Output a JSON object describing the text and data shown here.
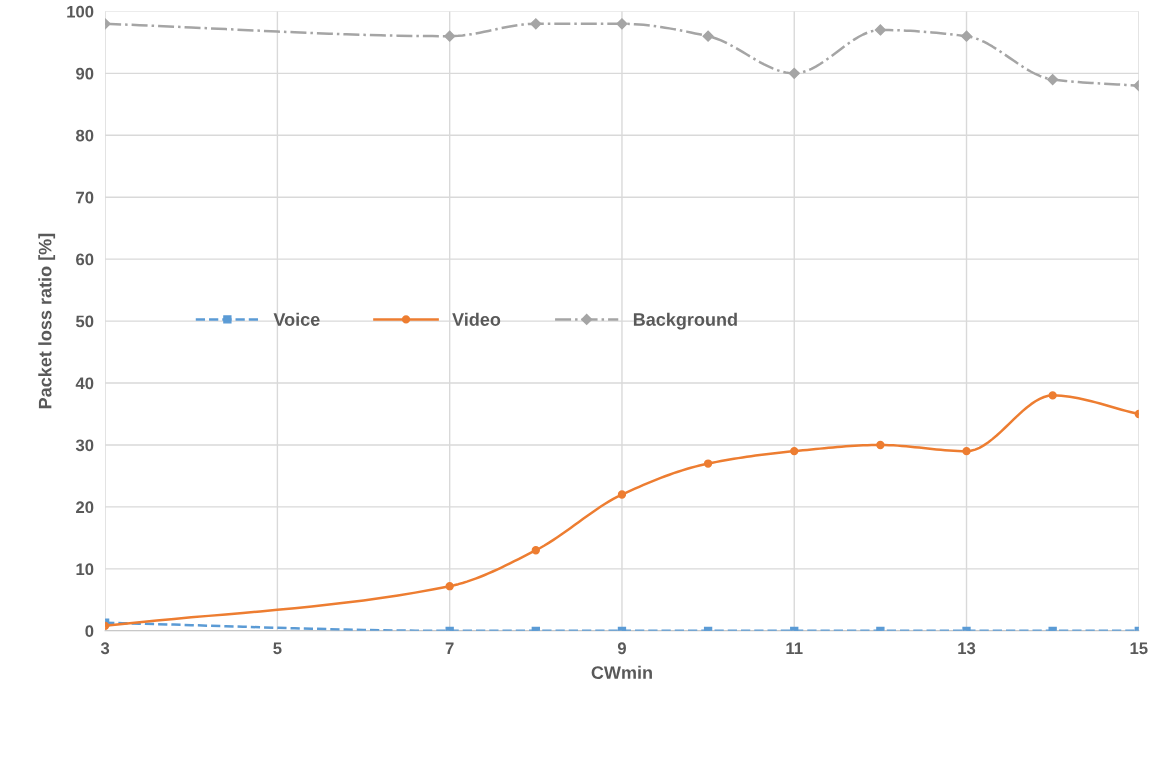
{
  "chart_data": {
    "type": "line",
    "xlabel": "CWmin",
    "ylabel": "Packet loss ratio [%]",
    "x": [
      3,
      7,
      8,
      9,
      10,
      11,
      12,
      13,
      14,
      15
    ],
    "series": [
      {
        "name": "Voice",
        "color": "#5b9bd5",
        "marker": "square",
        "line_style": "dashed",
        "values": [
          1.3,
          0,
          0,
          0,
          0,
          0,
          0,
          0,
          0,
          0
        ]
      },
      {
        "name": "Video",
        "color": "#ed7d31",
        "marker": "circle",
        "line_style": "solid",
        "values": [
          0.8,
          7.2,
          13,
          22,
          27,
          29,
          30,
          29,
          38,
          35
        ]
      },
      {
        "name": "Background",
        "color": "#a5a5a5",
        "marker": "diamond",
        "line_style": "dashdot",
        "values": [
          98,
          96,
          98,
          98,
          96,
          90,
          97,
          96,
          89,
          88
        ]
      }
    ],
    "xlim": [
      3,
      15
    ],
    "xticks": [
      3,
      5,
      7,
      9,
      11,
      13,
      15
    ],
    "ylim": [
      0,
      100
    ],
    "yticks": [
      0,
      10,
      20,
      30,
      40,
      50,
      60,
      70,
      80,
      90,
      100
    ],
    "grid": true,
    "legend": "center"
  }
}
